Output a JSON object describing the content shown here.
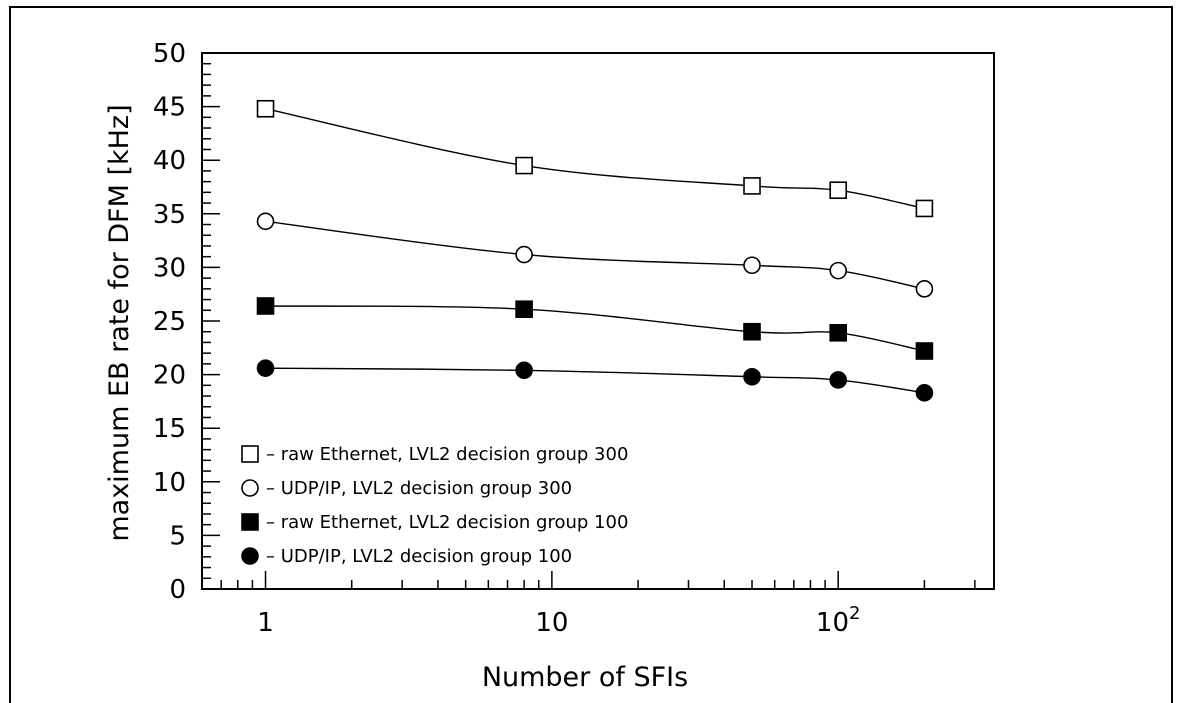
{
  "chart_data": {
    "type": "line",
    "xlabel": "Number of SFIs",
    "ylabel": "maximum EB rate for DFM [kHz]",
    "xscale": "log",
    "xlim": [
      0.6,
      350
    ],
    "ylim": [
      0,
      50
    ],
    "grid": false,
    "legend_position": "lower-left",
    "x_ticks": [
      {
        "value": 1,
        "label": "1"
      },
      {
        "value": 10,
        "label": "10"
      },
      {
        "value": 100,
        "label": "10",
        "sup": "2"
      }
    ],
    "y_ticks": [
      "0",
      "5",
      "10",
      "15",
      "20",
      "25",
      "30",
      "35",
      "40",
      "45",
      "50"
    ],
    "x": [
      1,
      8,
      50,
      100,
      200
    ],
    "series": [
      {
        "name": "raw Ethernet, LVL2 decision group 300",
        "marker": "open-square",
        "values": [
          44.8,
          39.5,
          37.6,
          37.2,
          35.5
        ]
      },
      {
        "name": "UDP/IP, LVL2 decision group 300",
        "marker": "open-circle",
        "values": [
          34.3,
          31.2,
          30.2,
          29.7,
          28.0
        ]
      },
      {
        "name": "raw Ethernet, LVL2 decision group 100",
        "marker": "filled-square",
        "values": [
          26.4,
          26.1,
          24.0,
          23.9,
          22.2
        ]
      },
      {
        "name": "UDP/IP, LVL2 decision group 100",
        "marker": "filled-circle",
        "values": [
          20.6,
          20.4,
          19.8,
          19.5,
          18.3
        ]
      }
    ]
  }
}
